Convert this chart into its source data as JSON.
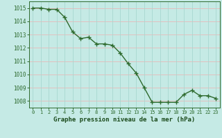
{
  "x": [
    0,
    1,
    2,
    3,
    4,
    5,
    6,
    7,
    8,
    9,
    10,
    11,
    12,
    13,
    14,
    15,
    16,
    17,
    18,
    19,
    20,
    21,
    22,
    23
  ],
  "y": [
    1015.0,
    1015.0,
    1014.9,
    1014.9,
    1014.3,
    1013.2,
    1012.7,
    1012.8,
    1012.3,
    1012.3,
    1012.2,
    1011.6,
    1010.8,
    1010.1,
    1009.0,
    1007.9,
    1007.9,
    1007.9,
    1007.9,
    1008.5,
    1008.8,
    1008.4,
    1008.4,
    1008.2
  ],
  "line_color": "#2d6a2d",
  "marker_color": "#2d6a2d",
  "bg_color": "#c5eae5",
  "grid_color_h": "#e8b8b8",
  "grid_color_v": "#a8d8d0",
  "xlabel": "Graphe pression niveau de la mer (hPa)",
  "xlabel_color": "#1a4a1a",
  "tick_color": "#2d6a2d",
  "ylim": [
    1007.5,
    1015.5
  ],
  "yticks": [
    1008,
    1009,
    1010,
    1011,
    1012,
    1013,
    1014,
    1015
  ],
  "xlim": [
    -0.5,
    23.5
  ],
  "xticks": [
    0,
    1,
    2,
    3,
    4,
    5,
    6,
    7,
    8,
    9,
    10,
    11,
    12,
    13,
    14,
    15,
    16,
    17,
    18,
    19,
    20,
    21,
    22,
    23
  ]
}
